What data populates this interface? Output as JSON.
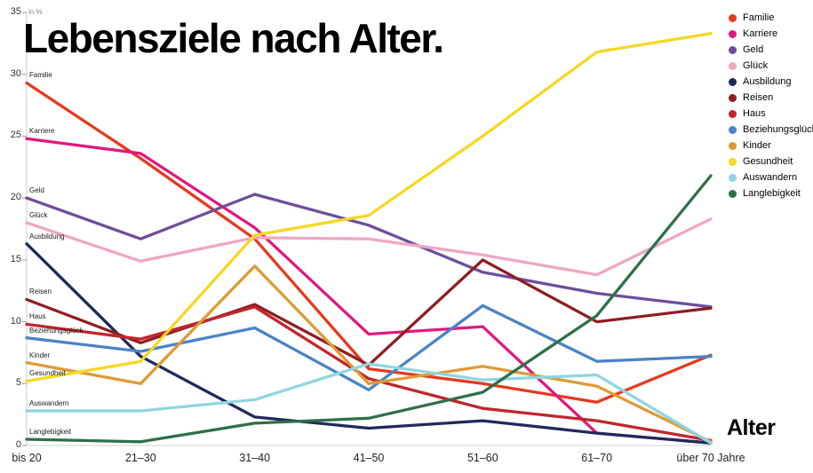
{
  "chart_data": {
    "type": "line",
    "title": "Lebensziele nach Alter.",
    "xlabel": "Alter",
    "ylabel": "in %",
    "ylim": [
      0,
      35
    ],
    "yticks": [
      0,
      5,
      10,
      15,
      20,
      25,
      30,
      35
    ],
    "grid": false,
    "legend_position": "top-right",
    "categories": [
      "bis 20",
      "21–30",
      "31–40",
      "41–50",
      "51–60",
      "61–70",
      "über 70 Jahre"
    ],
    "series": [
      {
        "name": "Familie",
        "color": "#e5391f",
        "values": [
          29.3,
          23.2,
          16.7,
          6.2,
          5.0,
          3.5,
          7.3
        ]
      },
      {
        "name": "Karriere",
        "color": "#e0197d",
        "values": [
          24.8,
          23.6,
          17.6,
          9.0,
          9.6,
          1.0,
          0.2
        ]
      },
      {
        "name": "Geld",
        "color": "#6f4e9c",
        "values": [
          20.0,
          16.7,
          20.3,
          17.8,
          14.0,
          12.3,
          11.2
        ]
      },
      {
        "name": "Glück",
        "color": "#f0a6c5",
        "values": [
          18.0,
          14.9,
          16.8,
          16.7,
          15.4,
          13.8,
          18.3
        ]
      },
      {
        "name": "Ausbildung",
        "color": "#20295c",
        "values": [
          16.3,
          7.2,
          2.3,
          1.4,
          2.0,
          1.0,
          0.2
        ]
      },
      {
        "name": "Reisen",
        "color": "#8e1e23",
        "values": [
          11.8,
          8.3,
          11.4,
          6.5,
          15.0,
          10.0,
          11.1
        ]
      },
      {
        "name": "Haus",
        "color": "#c0262c",
        "values": [
          9.8,
          8.6,
          11.2,
          5.4,
          3.0,
          2.0,
          0.4
        ]
      },
      {
        "name": "Beziehungsglück",
        "color": "#4a83c6",
        "values": [
          8.7,
          7.6,
          9.5,
          4.5,
          11.3,
          6.8,
          7.2
        ]
      },
      {
        "name": "Kinder",
        "color": "#dd9b35",
        "values": [
          6.7,
          5.0,
          14.5,
          5.0,
          6.4,
          4.8,
          0.3
        ]
      },
      {
        "name": "Gesundheit",
        "color": "#f6d723",
        "values": [
          5.2,
          6.8,
          17.0,
          18.6,
          25.0,
          31.8,
          33.3
        ]
      },
      {
        "name": "Auswandern",
        "color": "#8fd5e1",
        "values": [
          2.8,
          2.8,
          3.7,
          6.6,
          5.3,
          5.7,
          0.2
        ]
      },
      {
        "name": "Langlebigkeit",
        "color": "#2f6f4a",
        "values": [
          0.5,
          0.3,
          1.8,
          2.2,
          4.3,
          10.5,
          21.8
        ]
      }
    ]
  }
}
